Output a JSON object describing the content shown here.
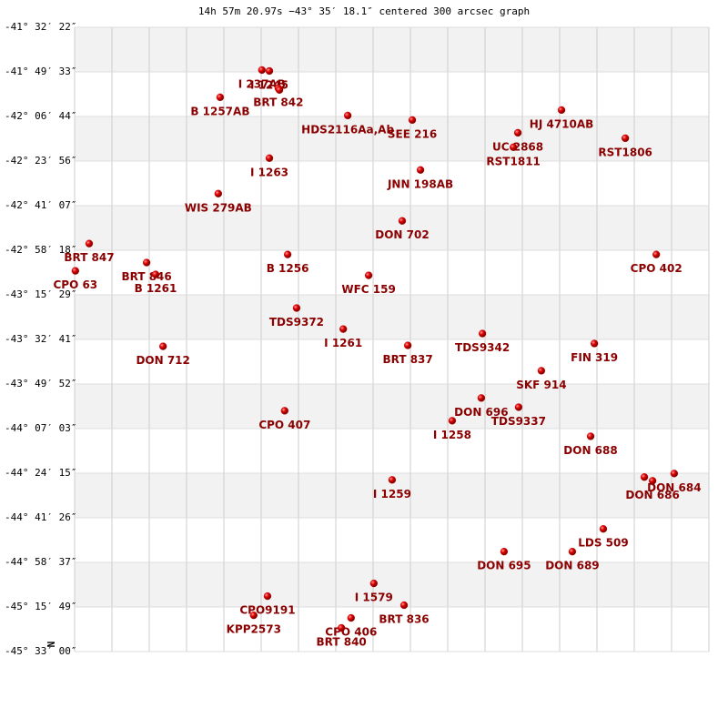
{
  "chart_data": {
    "type": "scatter",
    "title": "14h 57m 20.97s −43° 35′ 18.1″ centered 300 arcsec graph",
    "north_label": "N",
    "xlim": [
      0,
      17
    ],
    "ylim": [
      -45.55,
      -41.53944
    ],
    "yticks": [
      {
        "value": -41.53944,
        "label": "-41° 32′ 22″"
      },
      {
        "value": -41.82583,
        "label": "-41° 49′ 33″"
      },
      {
        "value": -42.11222,
        "label": "-42° 06′ 44″"
      },
      {
        "value": -42.39889,
        "label": "-42° 23′ 56″"
      },
      {
        "value": -42.68528,
        "label": "-42° 41′ 07″"
      },
      {
        "value": -42.97167,
        "label": "-42° 58′ 18″"
      },
      {
        "value": -43.25806,
        "label": "-43° 15′ 29″"
      },
      {
        "value": -43.54472,
        "label": "-43° 32′ 41″"
      },
      {
        "value": -43.83111,
        "label": "-43° 49′ 52″"
      },
      {
        "value": -44.1175,
        "label": "-44° 07′ 03″"
      },
      {
        "value": -44.40417,
        "label": "-44° 24′ 15″"
      },
      {
        "value": -44.69056,
        "label": "-44° 41′ 26″"
      },
      {
        "value": -44.97694,
        "label": "-44° 58′ 37″"
      },
      {
        "value": -45.26361,
        "label": "-45° 15′ 49″"
      },
      {
        "value": -45.55,
        "label": "-45° 33′ 00″"
      }
    ],
    "grid": true,
    "band_color": "#f2f2f2",
    "color": "#cc0000",
    "label_color": "#8b0000",
    "labels": [
      "I  237AB",
      "I 1245",
      "BRT 842",
      null,
      "B  1257AB",
      "HDS2116Aa,Ab",
      "SEE 216",
      "HJ 4710AB",
      "UC 2868",
      "RST1811",
      "RST1806",
      "I  1263",
      "JNN 198AB",
      "WIS 279AB",
      "DON 702",
      "BRT 847",
      "CPO  63",
      "BRT 846",
      "B  1261",
      "B  1256",
      "WFC 159",
      "CPO 402",
      "TDS9372",
      "I  1261",
      "TDS9342",
      "DON 712",
      "BRT 837",
      "FIN 319",
      "SKF 914",
      "DON 696",
      "TDS9337",
      "CPO 407",
      "I  1258",
      "DON 688",
      "I  1259",
      null,
      "DON 686",
      "DON 684",
      "LDS 509",
      "DON 695",
      "DON 689",
      "I  1579",
      "BRT 836",
      "CPO9191",
      "KPP2573",
      "CPO 406",
      "BRT 840"
    ],
    "x": [
      5.02,
      5.22,
      5.46,
      5.49,
      3.9,
      7.32,
      9.05,
      13.05,
      11.88,
      11.76,
      14.76,
      5.22,
      9.27,
      3.85,
      8.78,
      0.39,
      0.02,
      1.93,
      2.17,
      5.71,
      7.88,
      15.59,
      5.95,
      7.2,
      10.93,
      2.37,
      8.93,
      13.93,
      12.51,
      10.9,
      11.9,
      5.63,
      10.12,
      13.83,
      8.51,
      15.27,
      15.49,
      16.07,
      14.17,
      11.51,
      13.34,
      8.02,
      8.83,
      5.17,
      4.8,
      7.41,
      7.15
    ],
    "y": [
      -41.814,
      -41.82,
      -41.931,
      -41.942,
      -41.989,
      -42.106,
      -42.135,
      -42.071,
      -42.217,
      -42.31,
      -42.252,
      -42.38,
      -42.456,
      -42.608,
      -42.783,
      -42.929,
      -43.104,
      -43.051,
      -43.127,
      -42.999,
      -43.133,
      -42.999,
      -43.343,
      -43.478,
      -43.507,
      -43.589,
      -43.583,
      -43.571,
      -43.746,
      -43.921,
      -43.98,
      -44.003,
      -44.067,
      -44.167,
      -44.447,
      -44.429,
      -44.453,
      -44.406,
      -44.762,
      -44.908,
      -44.908,
      -45.112,
      -45.252,
      -45.194,
      -45.317,
      -45.334,
      -45.398
    ]
  }
}
